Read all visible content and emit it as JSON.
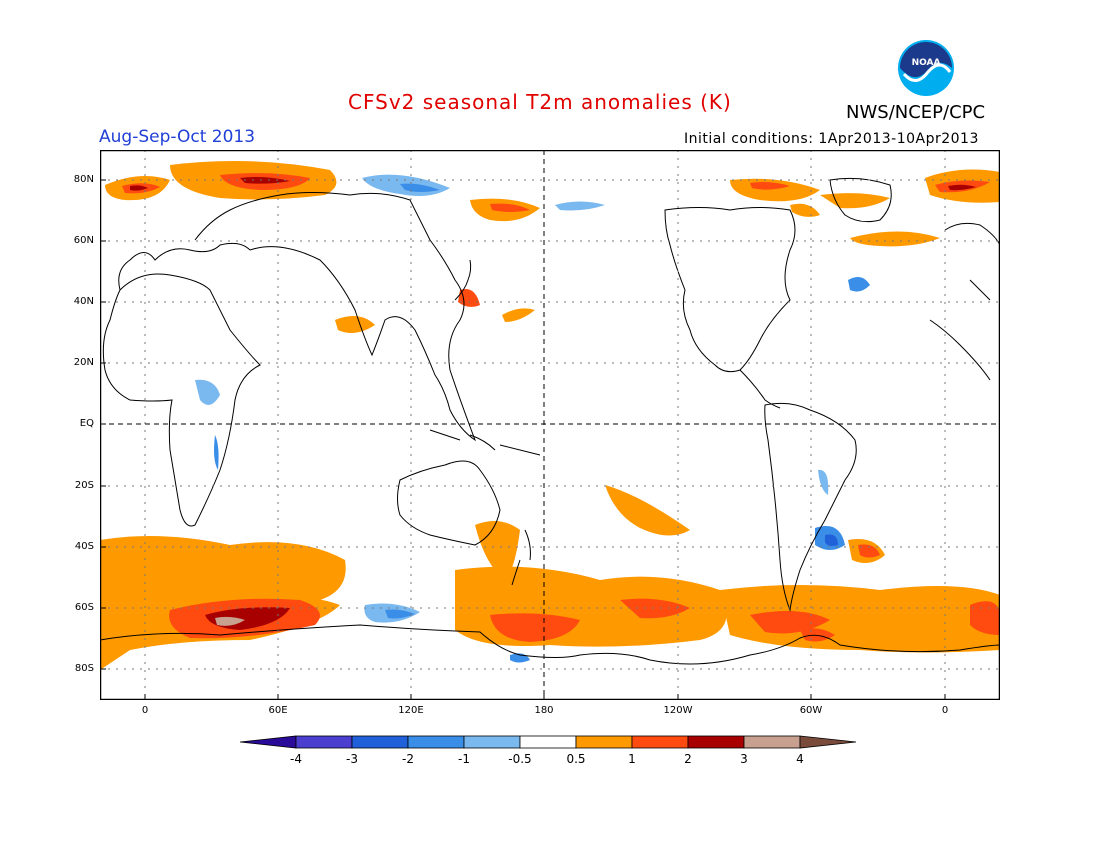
{
  "header": {
    "title": "CFSv2 seasonal T2m anomalies (K)",
    "agency": "NWS/NCEP/CPC",
    "period": "Aug-Sep-Oct 2013",
    "initial_conditions": "Initial conditions: 1Apr2013-10Apr2013",
    "logo_text": "NOAA",
    "logo_icon": "noaa-logo-icon"
  },
  "map": {
    "projection": "equirectangular",
    "lon_range": [
      "20W",
      "20W"
    ],
    "lat_range": [
      "90S",
      "90N"
    ],
    "lat_ticks": [
      "80N",
      "60N",
      "40N",
      "20N",
      "EQ",
      "20S",
      "40S",
      "60S",
      "80S"
    ],
    "lon_ticks": [
      "0",
      "60E",
      "120E",
      "180",
      "120W",
      "60W",
      "0"
    ],
    "dashed_reference_lines": [
      "EQ",
      "180"
    ],
    "grid": true
  },
  "colorbar": {
    "tick_labels": [
      "-4",
      "-3",
      "-2",
      "-1",
      "-0.5",
      "0.5",
      "1",
      "2",
      "3",
      "4"
    ],
    "colors": [
      "#2a0a98",
      "#4b3fd0",
      "#2060d8",
      "#3a8ee8",
      "#7ab8f0",
      "#ffffff",
      "#ff9900",
      "#ff4a10",
      "#a80000",
      "#c8a090",
      "#7a4a3a"
    ]
  },
  "anomaly_colors": {
    "warm_05_1": "#ff9900",
    "warm_1_2": "#ff4a10",
    "warm_2_3": "#a80000",
    "warm_3_4": "#c8a090",
    "cool_05_1": "#7ab8f0",
    "cool_1_2": "#3a8ee8",
    "cool_2_3": "#2060d8"
  }
}
